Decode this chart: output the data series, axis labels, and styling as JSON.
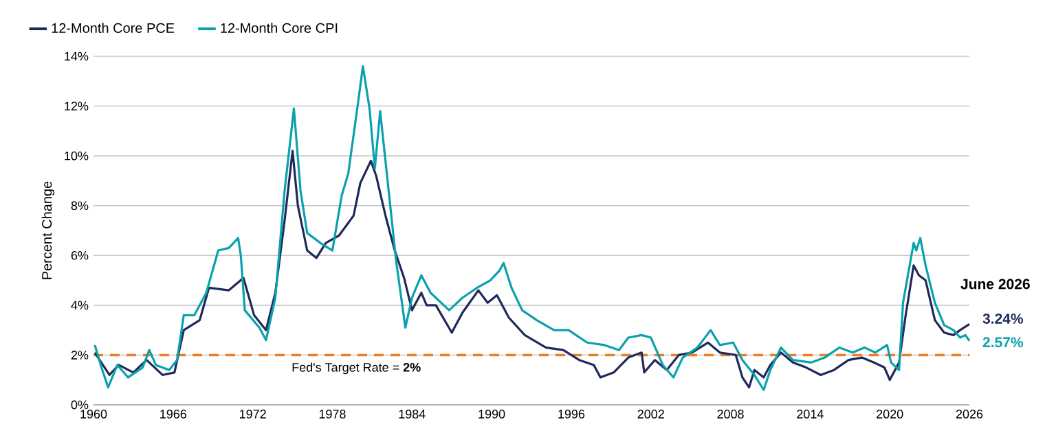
{
  "chart_data": {
    "type": "line",
    "ylabel": "Percent Change",
    "xlim": [
      1960,
      2026
    ],
    "xticks": [
      1960,
      1966,
      1972,
      1978,
      1984,
      1990,
      1996,
      2002,
      2008,
      2014,
      2020,
      2026
    ],
    "ylim": [
      0,
      14
    ],
    "yticks": [
      {
        "value": 0,
        "label": "0%"
      },
      {
        "value": 2,
        "label": "2%"
      },
      {
        "value": 4,
        "label": "4%"
      },
      {
        "value": 6,
        "label": "6%"
      },
      {
        "value": 8,
        "label": "8%"
      },
      {
        "value": 10,
        "label": "10%"
      },
      {
        "value": 12,
        "label": "12%"
      },
      {
        "value": 14,
        "label": "14%"
      }
    ],
    "grid": "y",
    "legend": "top left",
    "series": [
      {
        "name": "12-Month Core PCE",
        "color": "#1f2a5c",
        "x": [
          1960.1,
          1961.2,
          1961.9,
          1963.0,
          1964.0,
          1965.2,
          1966.1,
          1966.8,
          1968.0,
          1968.7,
          1970.2,
          1971.3,
          1972.1,
          1973.0,
          1973.7,
          1974.4,
          1975.0,
          1975.4,
          1976.1,
          1976.8,
          1977.5,
          1978.5,
          1979.6,
          1980.1,
          1980.9,
          1981.3,
          1982.0,
          1982.7,
          1983.4,
          1984.0,
          1984.7,
          1985.1,
          1985.8,
          1987.0,
          1987.8,
          1989.0,
          1989.7,
          1990.4,
          1991.3,
          1992.5,
          1994.1,
          1995.4,
          1996.6,
          1997.7,
          1998.2,
          1999.2,
          2000.3,
          2001.3,
          2001.5,
          2002.3,
          2003.2,
          2004.1,
          2005.1,
          2006.3,
          2007.2,
          2008.4,
          2008.9,
          2009.4,
          2009.8,
          2010.5,
          2011.0,
          2011.8,
          2012.7,
          2013.7,
          2014.8,
          2015.8,
          2016.9,
          2017.9,
          2018.8,
          2019.6,
          2020.0,
          2020.7,
          2021.2,
          2021.8,
          2022.2,
          2022.7,
          2023.4,
          2024.1,
          2024.8,
          2025.3,
          2026.0
        ],
        "values": [
          2.1,
          1.2,
          1.6,
          1.3,
          1.8,
          1.2,
          1.3,
          3.0,
          3.4,
          4.7,
          4.6,
          5.1,
          3.6,
          3.0,
          4.5,
          7.4,
          10.2,
          8.0,
          6.2,
          5.9,
          6.5,
          6.8,
          7.6,
          8.9,
          9.8,
          9.2,
          7.6,
          6.2,
          5.1,
          3.8,
          4.5,
          4.0,
          4.0,
          2.9,
          3.7,
          4.6,
          4.1,
          4.4,
          3.5,
          2.8,
          2.3,
          2.2,
          1.8,
          1.6,
          1.1,
          1.3,
          1.9,
          2.1,
          1.3,
          1.8,
          1.4,
          2.0,
          2.1,
          2.5,
          2.1,
          2.0,
          1.1,
          0.7,
          1.4,
          1.1,
          1.6,
          2.1,
          1.7,
          1.5,
          1.2,
          1.4,
          1.8,
          1.9,
          1.7,
          1.5,
          1.0,
          1.7,
          3.6,
          5.6,
          5.2,
          5.0,
          3.4,
          2.9,
          2.8,
          3.0,
          3.24
        ]
      },
      {
        "name": "12-Month Core CPI",
        "color": "#0aa1ad",
        "x": [
          1960.1,
          1960.6,
          1961.1,
          1961.8,
          1962.6,
          1963.7,
          1964.2,
          1964.7,
          1965.7,
          1966.3,
          1966.8,
          1967.6,
          1968.5,
          1969.4,
          1970.2,
          1970.9,
          1971.1,
          1971.4,
          1972.5,
          1973.0,
          1973.7,
          1974.4,
          1975.1,
          1975.6,
          1976.1,
          1977.1,
          1978.0,
          1978.7,
          1979.2,
          1979.9,
          1980.3,
          1980.8,
          1981.2,
          1981.6,
          1982.1,
          1982.8,
          1983.5,
          1984.0,
          1984.7,
          1985.4,
          1986.8,
          1987.8,
          1988.9,
          1989.9,
          1990.6,
          1990.9,
          1991.5,
          1992.3,
          1993.4,
          1994.7,
          1995.8,
          1997.2,
          1998.5,
          1999.6,
          2000.3,
          2001.3,
          2002.0,
          2002.9,
          2003.7,
          2004.4,
          2005.5,
          2006.5,
          2007.2,
          2008.2,
          2008.9,
          2009.8,
          2010.5,
          2011.0,
          2011.8,
          2012.7,
          2014.1,
          2015.1,
          2016.2,
          2017.2,
          2018.1,
          2018.9,
          2019.8,
          2020.1,
          2020.7,
          2021.0,
          2021.5,
          2021.8,
          2022.0,
          2022.3,
          2022.7,
          2023.4,
          2024.1,
          2024.8,
          2025.3,
          2025.7,
          2026.0
        ],
        "values": [
          2.4,
          1.5,
          0.7,
          1.6,
          1.1,
          1.5,
          2.2,
          1.6,
          1.4,
          1.8,
          3.6,
          3.6,
          4.5,
          6.2,
          6.3,
          6.7,
          6.0,
          3.8,
          3.1,
          2.6,
          4.3,
          8.6,
          11.9,
          8.6,
          6.9,
          6.5,
          6.2,
          8.4,
          9.3,
          12.0,
          13.6,
          11.9,
          9.5,
          11.8,
          9.3,
          5.8,
          3.1,
          4.3,
          5.2,
          4.5,
          3.8,
          4.3,
          4.7,
          5.0,
          5.4,
          5.7,
          4.7,
          3.8,
          3.4,
          3.0,
          3.0,
          2.5,
          2.4,
          2.2,
          2.7,
          2.8,
          2.7,
          1.6,
          1.1,
          1.9,
          2.3,
          3.0,
          2.4,
          2.5,
          1.8,
          1.2,
          0.6,
          1.4,
          2.3,
          1.8,
          1.7,
          1.9,
          2.3,
          2.1,
          2.3,
          2.1,
          2.4,
          1.7,
          1.4,
          4.1,
          5.6,
          6.5,
          6.2,
          6.7,
          5.6,
          4.1,
          3.2,
          3.0,
          2.7,
          2.8,
          2.57
        ]
      }
    ],
    "ref_lines": [
      {
        "axis": "y",
        "value": 2,
        "label": "Fed's Target Rate = **2%**",
        "color": "#f07d22",
        "line_style": "dashed"
      }
    ],
    "annotations": [
      "June 2026",
      {
        "text": "3.24%",
        "x": 2026,
        "y": 3.24
      },
      {
        "text": "2.57%",
        "x": 2026,
        "y": 2.57
      }
    ]
  }
}
